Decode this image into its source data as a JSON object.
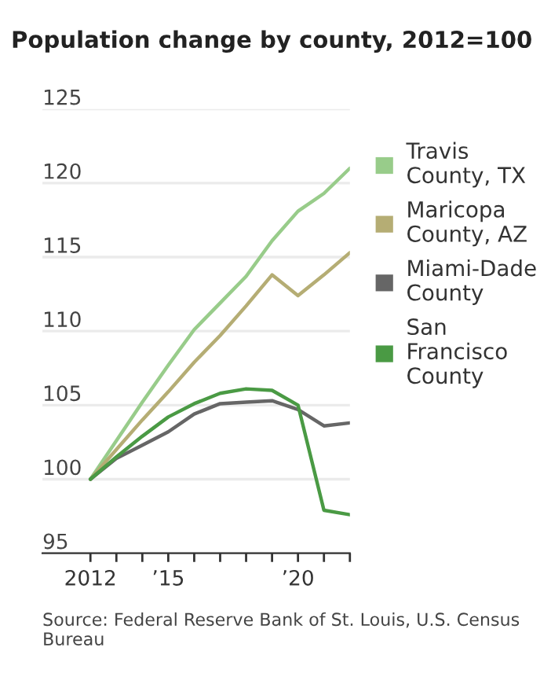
{
  "chart_data": {
    "type": "line",
    "title": "Population change by county, 2012=100",
    "x": [
      2012,
      2013,
      2014,
      2015,
      2016,
      2017,
      2018,
      2019,
      2020,
      2021,
      2022
    ],
    "series": [
      {
        "name": "Travis County, TX",
        "color": "#98cc8a",
        "values": [
          100,
          102.6,
          105.2,
          107.7,
          110.1,
          111.9,
          113.7,
          116.1,
          118.1,
          119.3,
          121.0
        ]
      },
      {
        "name": "Maricopa County, AZ",
        "color": "#b5ad74",
        "values": [
          100,
          102.0,
          104.0,
          105.9,
          107.9,
          109.7,
          111.7,
          113.8,
          112.4,
          113.8,
          115.3
        ]
      },
      {
        "name": "Miami-Dade County",
        "color": "#666666",
        "values": [
          100,
          101.4,
          102.3,
          103.2,
          104.4,
          105.1,
          105.2,
          105.3,
          104.7,
          103.6,
          103.8
        ]
      },
      {
        "name": "San Francisco County",
        "color": "#4a9a44",
        "values": [
          100,
          101.5,
          102.9,
          104.2,
          105.1,
          105.8,
          106.1,
          106.0,
          105.0,
          97.9,
          97.6
        ]
      }
    ],
    "xlim": [
      2010.15,
      2022
    ],
    "xticks": [
      {
        "value": 2012,
        "label": "2012"
      },
      {
        "value": 2013,
        "label": null
      },
      {
        "value": 2014,
        "label": null
      },
      {
        "value": 2015,
        "label": "’15"
      },
      {
        "value": 2016,
        "label": null
      },
      {
        "value": 2017,
        "label": null
      },
      {
        "value": 2018,
        "label": null
      },
      {
        "value": 2019,
        "label": null
      },
      {
        "value": 2020,
        "label": "’20"
      },
      {
        "value": 2021,
        "label": null
      },
      {
        "value": 2022,
        "label": null
      }
    ],
    "ylim": [
      95,
      125
    ],
    "yticks": [
      95,
      100,
      105,
      110,
      115,
      120,
      125
    ],
    "grid": "y",
    "legend": "right",
    "marker": "none",
    "line_style": "solid",
    "annotations": [
      "Source: Federal Reserve Bank of St. Louis, U.S. Census Bureau"
    ]
  }
}
